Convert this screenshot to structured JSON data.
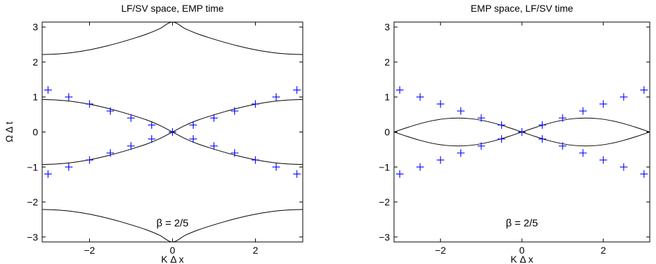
{
  "figure": {
    "panels": [
      "left",
      "right"
    ]
  },
  "chart_data": [
    {
      "type": "line",
      "title": "LF/SV space, EMP time",
      "xlabel": "K Δ x",
      "ylabel": "Ω Δ t",
      "xlim": [
        -3.14159,
        3.14159
      ],
      "ylim": [
        -3.14159,
        3.14159
      ],
      "xticks": [
        -2,
        0,
        2
      ],
      "xtick_labels": [
        "−2",
        "0",
        "2"
      ],
      "yticks": [
        -3,
        -2,
        -1,
        0,
        1,
        2,
        3
      ],
      "ytick_labels": [
        "−3",
        "−2",
        "−1",
        "0",
        "1",
        "2",
        "3"
      ],
      "grid": false,
      "legend": "none",
      "annotation": "β = 2/5",
      "series": [
        {
          "style": "solid",
          "color": "#000000",
          "x": [
            -3.14159,
            -2.82743,
            -2.51327,
            -2.19911,
            -1.88496,
            -1.5708,
            -1.25664,
            -0.94248,
            -0.62832,
            -0.31416,
            0,
            0.31416,
            0.62832,
            0.94248,
            1.25664,
            1.5708,
            1.88496,
            2.19911,
            2.51327,
            2.82743,
            3.14159
          ],
          "y": [
            0.9273,
            0.9167,
            0.8855,
            0.8345,
            0.7653,
            0.6797,
            0.58,
            0.4685,
            0.3472,
            0.1938,
            0,
            -0.1938,
            -0.3472,
            -0.4685,
            -0.58,
            -0.6797,
            -0.7653,
            -0.8345,
            -0.8855,
            -0.9167,
            -0.9273
          ]
        },
        {
          "style": "solid",
          "color": "#000000",
          "x": [
            -3.14159,
            -2.82743,
            -2.51327,
            -2.19911,
            -1.88496,
            -1.5708,
            -1.25664,
            -0.94248,
            -0.62832,
            -0.31416,
            0,
            0.31416,
            0.62832,
            0.94248,
            1.25664,
            1.5708,
            1.88496,
            2.19911,
            2.51327,
            2.82743,
            3.14159
          ],
          "y": [
            -0.9273,
            -0.9167,
            -0.8855,
            -0.8345,
            -0.7653,
            -0.6797,
            -0.58,
            -0.4685,
            -0.3472,
            -0.1938,
            0,
            0.1938,
            0.3472,
            0.4685,
            0.58,
            0.6797,
            0.7653,
            0.8345,
            0.8855,
            0.9167,
            0.9273
          ]
        },
        {
          "style": "solid",
          "color": "#000000",
          "x": [
            -3.14159,
            -2.82743,
            -2.51327,
            -2.19911,
            -1.88496,
            -1.5708,
            -1.25664,
            -0.94248,
            -0.62832,
            -0.31416,
            0,
            0.31416,
            0.62832,
            0.94248,
            1.25664,
            1.5708,
            1.88496,
            2.19911,
            2.51327,
            2.82743,
            3.14159
          ],
          "y": [
            2.2143,
            2.2249,
            2.2561,
            2.3071,
            2.3763,
            2.4619,
            2.5616,
            2.6731,
            2.7944,
            2.9478,
            3.1416,
            2.9478,
            2.7944,
            2.6731,
            2.5616,
            2.4619,
            2.3763,
            2.3071,
            2.2561,
            2.2249,
            2.2143
          ]
        },
        {
          "style": "solid",
          "color": "#000000",
          "x": [
            -3.14159,
            -2.82743,
            -2.51327,
            -2.19911,
            -1.88496,
            -1.5708,
            -1.25664,
            -0.94248,
            -0.62832,
            -0.31416,
            0,
            0.31416,
            0.62832,
            0.94248,
            1.25664,
            1.5708,
            1.88496,
            2.19911,
            2.51327,
            2.82743,
            3.14159
          ],
          "y": [
            -2.2143,
            -2.2249,
            -2.2561,
            -2.3071,
            -2.3763,
            -2.4619,
            -2.5616,
            -2.6731,
            -2.7944,
            -2.9478,
            -3.1416,
            -2.9478,
            -2.7944,
            -2.6731,
            -2.5616,
            -2.4619,
            -2.3763,
            -2.3071,
            -2.2561,
            -2.2249,
            -2.2143
          ]
        },
        {
          "style": "marker",
          "marker": "+",
          "color": "#0000ff",
          "x": [
            -3,
            -2.5,
            -2,
            -1.5,
            -1,
            -0.5,
            0,
            0.5,
            1,
            1.5,
            2,
            2.5,
            3
          ],
          "y": [
            1.2,
            1.0,
            0.8,
            0.6,
            0.4,
            0.2,
            0,
            -0.2,
            -0.4,
            -0.6,
            -0.8,
            -1.0,
            -1.2
          ]
        },
        {
          "style": "marker",
          "marker": "+",
          "color": "#0000ff",
          "x": [
            -3,
            -2.5,
            -2,
            -1.5,
            -1,
            -0.5,
            0,
            0.5,
            1,
            1.5,
            2,
            2.5,
            3
          ],
          "y": [
            -1.2,
            -1.0,
            -0.8,
            -0.6,
            -0.4,
            -0.2,
            0,
            0.2,
            0.4,
            0.6,
            0.8,
            1.0,
            1.2
          ]
        }
      ]
    },
    {
      "type": "line",
      "title": "EMP space, LF/SV time",
      "xlabel": "K Δ x",
      "ylabel": "",
      "xlim": [
        -3.14159,
        3.14159
      ],
      "ylim": [
        -3.14159,
        3.14159
      ],
      "xticks": [
        -2,
        0,
        2
      ],
      "xtick_labels": [
        "−2",
        "0",
        "2"
      ],
      "yticks": [
        -3,
        -2,
        -1,
        0,
        1,
        2,
        3
      ],
      "ytick_labels": [
        "−3",
        "−2",
        "−1",
        "0",
        "1",
        "2",
        "3"
      ],
      "grid": false,
      "legend": "none",
      "annotation": "β = 2/5",
      "series": [
        {
          "style": "solid",
          "color": "#000000",
          "x": [
            -3.14159,
            -2.82743,
            -2.51327,
            -2.19911,
            -1.88496,
            -1.5708,
            -1.25664,
            -0.94248,
            -0.62832,
            -0.31416,
            0,
            0.31416,
            0.62832,
            0.94248,
            1.25664,
            1.5708,
            1.88496,
            2.19911,
            2.51327,
            2.82743,
            3.14159
          ],
          "y": [
            0,
            -0.1237,
            -0.2353,
            -0.3236,
            -0.3804,
            -0.4,
            -0.3804,
            -0.3236,
            -0.2353,
            -0.1237,
            0,
            0.1237,
            0.2353,
            0.3236,
            0.3804,
            0.4,
            0.3804,
            0.3236,
            0.2353,
            0.1237,
            0
          ]
        },
        {
          "style": "solid",
          "color": "#000000",
          "x": [
            -3.14159,
            -2.82743,
            -2.51327,
            -2.19911,
            -1.88496,
            -1.5708,
            -1.25664,
            -0.94248,
            -0.62832,
            -0.31416,
            0,
            0.31416,
            0.62832,
            0.94248,
            1.25664,
            1.5708,
            1.88496,
            2.19911,
            2.51327,
            2.82743,
            3.14159
          ],
          "y": [
            0,
            0.1237,
            0.2353,
            0.3236,
            0.3804,
            0.4,
            0.3804,
            0.3236,
            0.2353,
            0.1237,
            0,
            -0.1237,
            -0.2353,
            -0.3236,
            -0.3804,
            -0.4,
            -0.3804,
            -0.3236,
            -0.2353,
            -0.1237,
            0
          ]
        },
        {
          "style": "marker",
          "marker": "+",
          "color": "#0000ff",
          "x": [
            -3,
            -2.5,
            -2,
            -1.5,
            -1,
            -0.5,
            0,
            0.5,
            1,
            1.5,
            2,
            2.5,
            3
          ],
          "y": [
            1.2,
            1.0,
            0.8,
            0.6,
            0.4,
            0.2,
            0,
            -0.2,
            -0.4,
            -0.6,
            -0.8,
            -1.0,
            -1.2
          ]
        },
        {
          "style": "marker",
          "marker": "+",
          "color": "#0000ff",
          "x": [
            -3,
            -2.5,
            -2,
            -1.5,
            -1,
            -0.5,
            0,
            0.5,
            1,
            1.5,
            2,
            2.5,
            3
          ],
          "y": [
            -1.2,
            -1.0,
            -0.8,
            -0.6,
            -0.4,
            -0.2,
            0,
            0.2,
            0.4,
            0.6,
            0.8,
            1.0,
            1.2
          ]
        }
      ]
    }
  ]
}
